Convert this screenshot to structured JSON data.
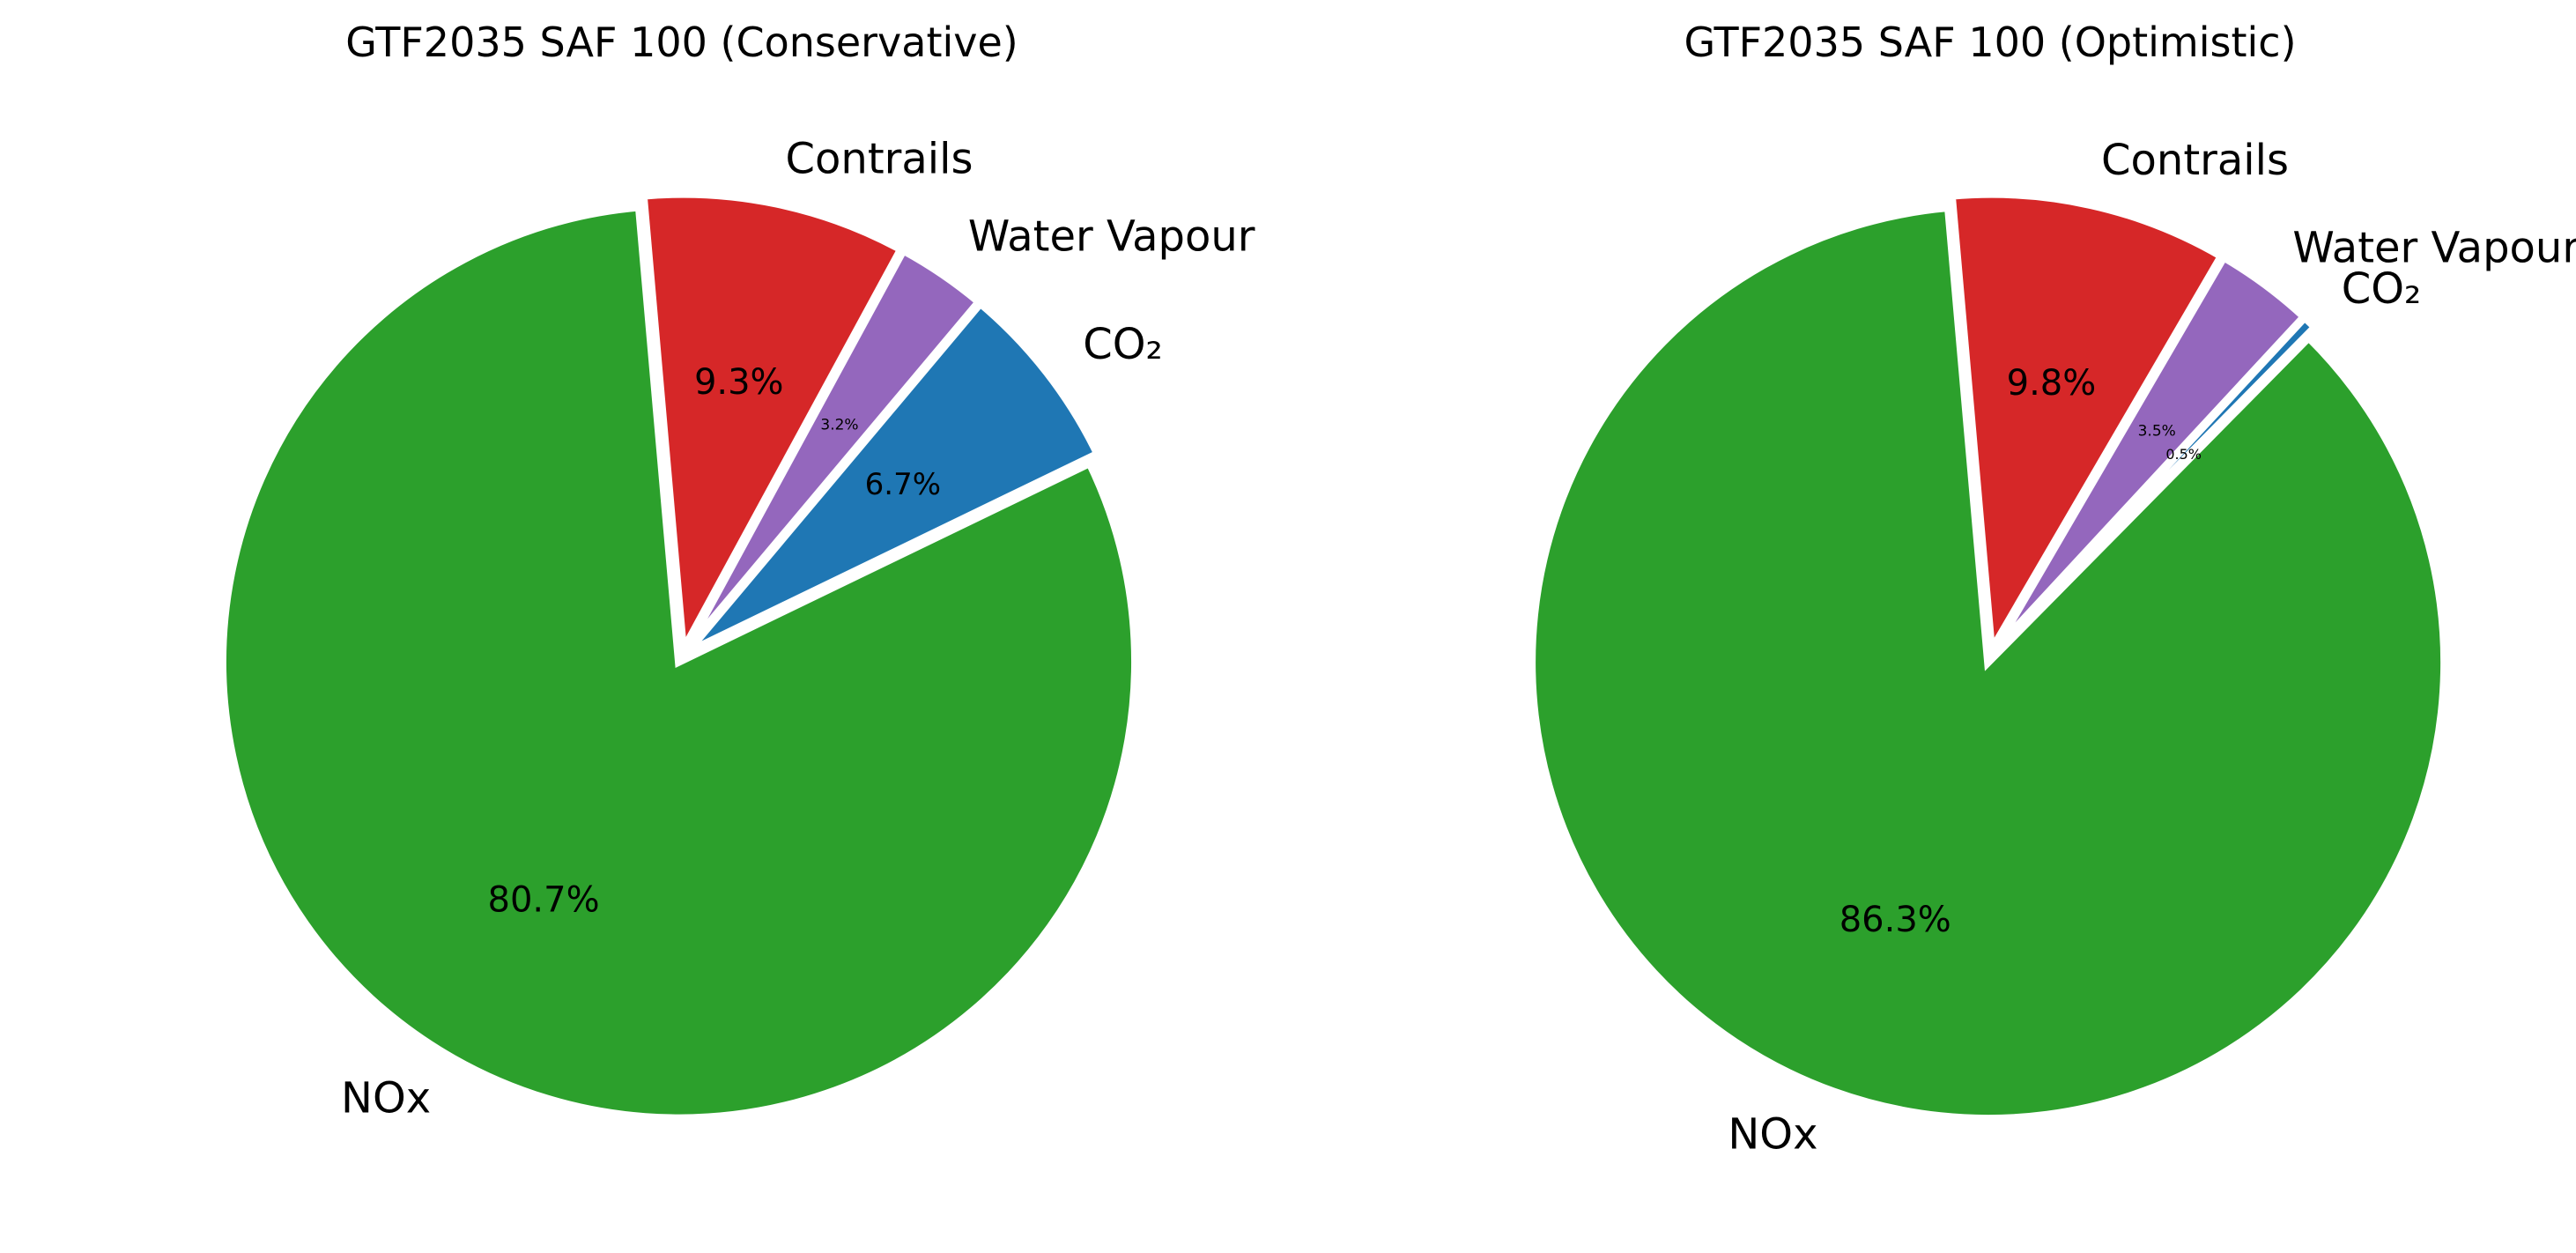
{
  "chart_data": [
    {
      "type": "pie",
      "title": "GTF2035 SAF 100 (Conservative)",
      "start_angle_deg": 95,
      "direction": "counterclockwise",
      "explode": "small white gaps between wedges",
      "slices": [
        {
          "label": "NOx",
          "value": 80.7,
          "pct_label": "80.7%",
          "color": "#2ca02c"
        },
        {
          "label": "CO₂",
          "value": 6.7,
          "pct_label": "6.7%",
          "color": "#1f77b4"
        },
        {
          "label": "Water Vapour",
          "value": 3.2,
          "pct_label": "3.2%",
          "color": "#9467bd"
        },
        {
          "label": "Contrails",
          "value": 9.3,
          "pct_label": "9.3%",
          "color": "#d62728"
        }
      ]
    },
    {
      "type": "pie",
      "title": "GTF2035 SAF 100 (Optimistic)",
      "start_angle_deg": 95,
      "direction": "counterclockwise",
      "explode": "small white gaps between wedges",
      "slices": [
        {
          "label": "NOx",
          "value": 86.3,
          "pct_label": "86.3%",
          "color": "#2ca02c"
        },
        {
          "label": "CO₂",
          "value": 0.5,
          "pct_label": "0.5%",
          "color": "#1f77b4"
        },
        {
          "label": "Water Vapour",
          "value": 3.5,
          "pct_label": "3.5%",
          "color": "#9467bd"
        },
        {
          "label": "Contrails",
          "value": 9.8,
          "pct_label": "9.8%",
          "color": "#d62728"
        }
      ]
    }
  ]
}
